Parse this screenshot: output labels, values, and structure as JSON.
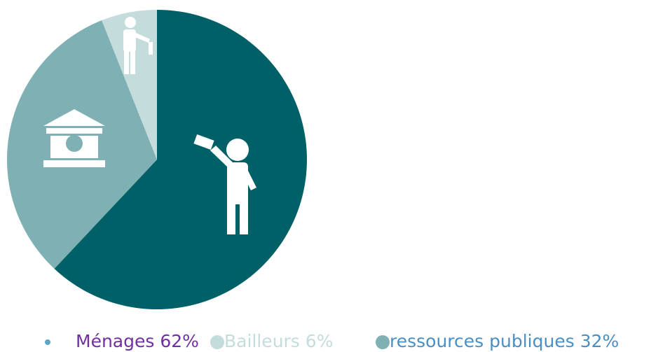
{
  "chart_data": {
    "type": "pie",
    "categories": [
      "Ménages",
      "Bailleurs",
      "ressources publiques"
    ],
    "values": [
      62,
      6,
      32
    ],
    "value_labels": [
      "62%",
      "6%",
      "32%"
    ],
    "colors": [
      "#006068",
      "#c5dcdd",
      "#7fb0b4"
    ],
    "legend": "bottom"
  }
}
